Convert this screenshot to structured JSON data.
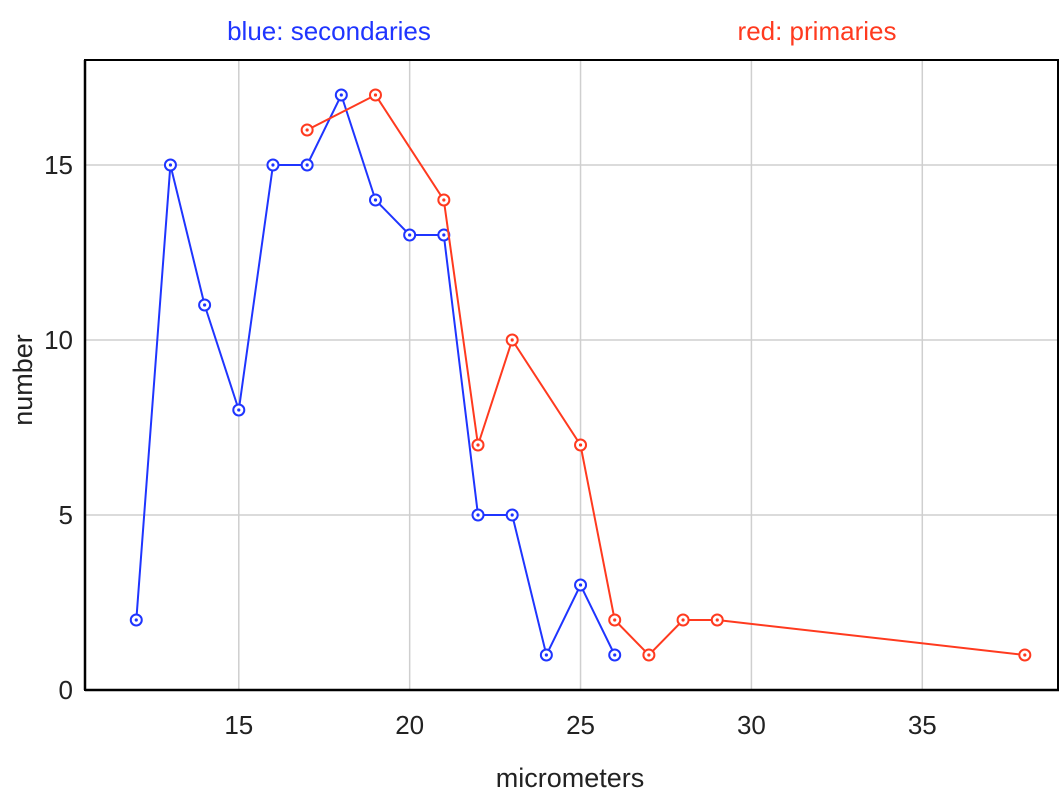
{
  "chart_data": {
    "type": "line",
    "title": "",
    "xlabel": "micrometers",
    "ylabel": "number",
    "xlim": [
      10.5,
      39
    ],
    "ylim": [
      0,
      18
    ],
    "xticks": [
      15,
      20,
      25,
      30,
      35
    ],
    "yticks": [
      0,
      5,
      10,
      15
    ],
    "grid": true,
    "legend_position": "top",
    "series": [
      {
        "name": "blue: secondaries",
        "color": "#1f35ff",
        "x": [
          12,
          13,
          14,
          15,
          16,
          17,
          18,
          19,
          20,
          21,
          22,
          23,
          24,
          25,
          26
        ],
        "y": [
          2,
          15,
          11,
          8,
          15,
          15,
          17,
          14,
          13,
          13,
          5,
          5,
          1,
          3,
          1
        ]
      },
      {
        "name": "red: primaries",
        "color": "#ff3a1f",
        "x": [
          17,
          19,
          21,
          22,
          23,
          25,
          26,
          27,
          28,
          29,
          38
        ],
        "y": [
          16,
          17,
          14,
          7,
          10,
          7,
          2,
          1,
          2,
          2,
          1
        ]
      }
    ]
  }
}
